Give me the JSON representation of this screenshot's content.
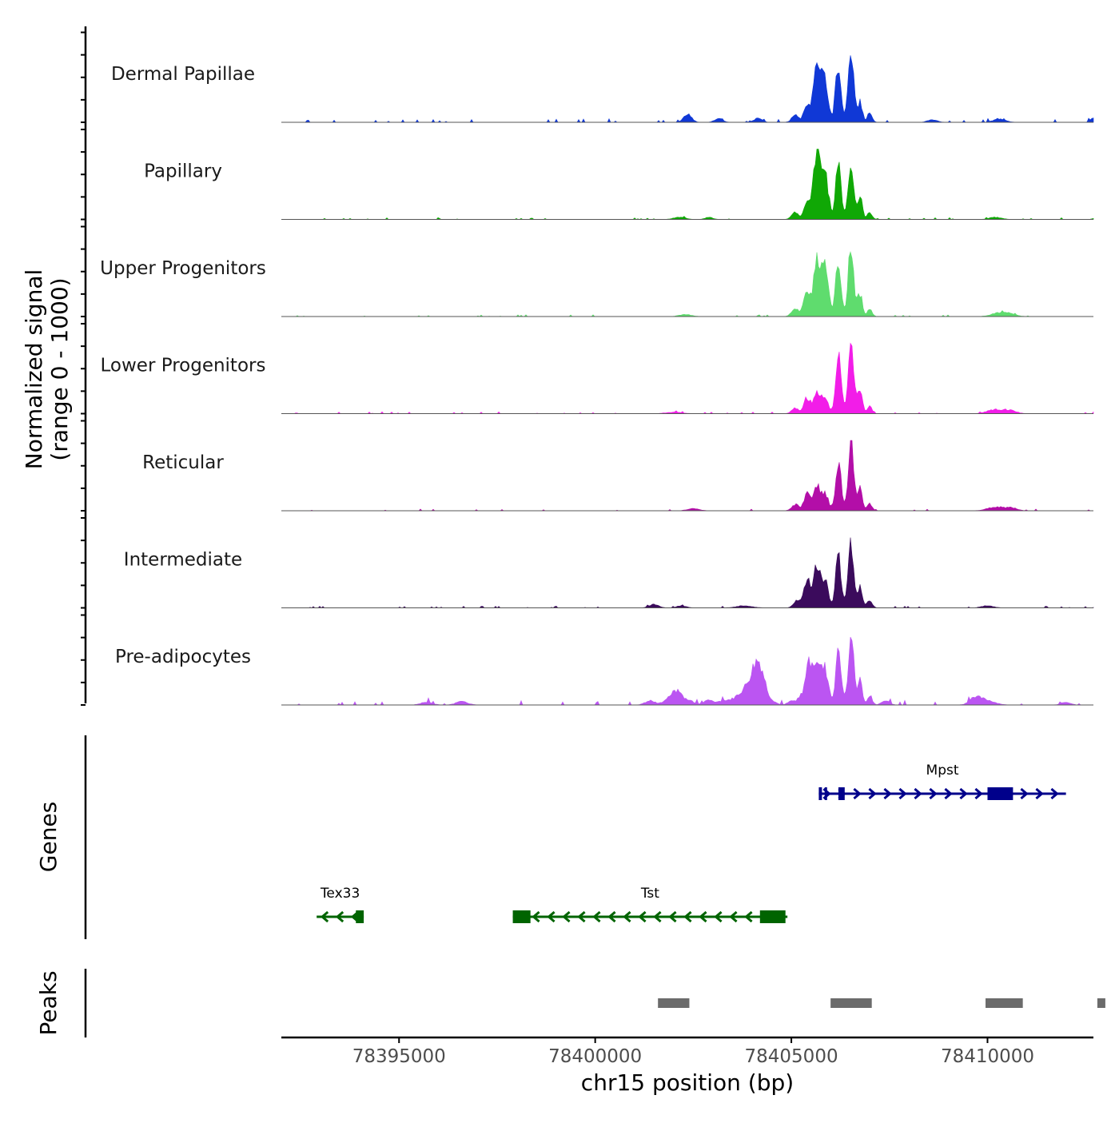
{
  "chart_data": {
    "type": "area",
    "title": "",
    "xlabel": "chr15 position (bp)",
    "xlim": [
      78392000,
      78412700
    ],
    "x_ticks": [
      78395000,
      78400000,
      78405000,
      78410000
    ],
    "x_tick_labels": [
      "78395000",
      "78400000",
      "78405000",
      "78410000"
    ],
    "coverage_ylabel": "Normalized signal\n(range 0 - 1000)",
    "ylim": [
      0,
      1000
    ],
    "tracks": [
      {
        "name": "Dermal Papillae",
        "color": "#1038d6",
        "peaks": [
          [
            78402360,
            12,
            100
          ],
          [
            78403150,
            6,
            100
          ],
          [
            78404150,
            6,
            100
          ],
          [
            78405100,
            10,
            90
          ],
          [
            78405400,
            20,
            80
          ],
          [
            78405650,
            95,
            85
          ],
          [
            78405860,
            56,
            85
          ],
          [
            78406200,
            85,
            70
          ],
          [
            78406520,
            100,
            70
          ],
          [
            78406750,
            28,
            60
          ],
          [
            78407000,
            14,
            60
          ],
          [
            78408600,
            4,
            120
          ],
          [
            78410300,
            5,
            150
          ],
          [
            78412700,
            6,
            70
          ]
        ],
        "noise": 4,
        "seed": 3
      },
      {
        "name": "Papillary",
        "color": "#10a805",
        "peaks": [
          [
            78402150,
            3,
            150
          ],
          [
            78402900,
            3,
            100
          ],
          [
            78405100,
            9,
            90
          ],
          [
            78405400,
            22,
            80
          ],
          [
            78405650,
            100,
            85
          ],
          [
            78405860,
            65,
            85
          ],
          [
            78406200,
            82,
            70
          ],
          [
            78406520,
            82,
            70
          ],
          [
            78406750,
            32,
            60
          ],
          [
            78407000,
            10,
            60
          ],
          [
            78410200,
            3,
            150
          ],
          [
            78412800,
            2,
            100
          ]
        ],
        "noise": 2,
        "seed": 7
      },
      {
        "name": "Upper Progenitors",
        "color": "#5fdc6e",
        "peaks": [
          [
            78402300,
            3,
            150
          ],
          [
            78405100,
            12,
            90
          ],
          [
            78405400,
            38,
            80
          ],
          [
            78405650,
            75,
            85
          ],
          [
            78405860,
            66,
            85
          ],
          [
            78406200,
            78,
            70
          ],
          [
            78406520,
            100,
            70
          ],
          [
            78406750,
            32,
            60
          ],
          [
            78407000,
            10,
            60
          ],
          [
            78410300,
            5,
            200
          ],
          [
            78410600,
            3,
            150
          ]
        ],
        "noise": 2,
        "seed": 11
      },
      {
        "name": "Lower Progenitors",
        "color": "#f21de8",
        "peaks": [
          [
            78402000,
            2,
            200
          ],
          [
            78405100,
            8,
            90
          ],
          [
            78405400,
            22,
            80
          ],
          [
            78405650,
            32,
            85
          ],
          [
            78405860,
            22,
            85
          ],
          [
            78406200,
            80,
            70
          ],
          [
            78406520,
            100,
            70
          ],
          [
            78406750,
            36,
            60
          ],
          [
            78407000,
            10,
            60
          ],
          [
            78410200,
            6,
            200
          ],
          [
            78410600,
            4,
            150
          ]
        ],
        "noise": 2,
        "seed": 19
      },
      {
        "name": "Reticular",
        "color": "#b30ea8",
        "peaks": [
          [
            78402500,
            3,
            150
          ],
          [
            78405100,
            9,
            90
          ],
          [
            78405400,
            22,
            80
          ],
          [
            78405650,
            36,
            85
          ],
          [
            78405860,
            24,
            85
          ],
          [
            78406200,
            72,
            70
          ],
          [
            78406520,
            100,
            70
          ],
          [
            78406750,
            33,
            60
          ],
          [
            78407000,
            10,
            60
          ],
          [
            78410200,
            5,
            200
          ],
          [
            78410600,
            4,
            150
          ]
        ],
        "noise": 2,
        "seed": 23
      },
      {
        "name": "Intermediate",
        "color": "#3b0b5c",
        "peaks": [
          [
            78401500,
            5,
            120
          ],
          [
            78402200,
            3,
            120
          ],
          [
            78403800,
            3,
            200
          ],
          [
            78405150,
            10,
            90
          ],
          [
            78405400,
            40,
            80
          ],
          [
            78405650,
            60,
            85
          ],
          [
            78405860,
            38,
            85
          ],
          [
            78406200,
            74,
            70
          ],
          [
            78406520,
            88,
            70
          ],
          [
            78406750,
            28,
            60
          ],
          [
            78407000,
            12,
            60
          ],
          [
            78410000,
            3,
            150
          ]
        ],
        "noise": 2,
        "seed": 29
      },
      {
        "name": "Pre-adipocytes",
        "color": "#bb55f2",
        "peaks": [
          [
            78395700,
            4,
            150
          ],
          [
            78396600,
            5,
            150
          ],
          [
            78401400,
            6,
            130
          ],
          [
            78401900,
            8,
            150
          ],
          [
            78402100,
            17,
            120
          ],
          [
            78402400,
            6,
            120
          ],
          [
            78402900,
            7,
            120
          ],
          [
            78403300,
            6,
            150
          ],
          [
            78403650,
            10,
            150
          ],
          [
            78403900,
            20,
            150
          ],
          [
            78404100,
            40,
            130
          ],
          [
            78404250,
            30,
            120
          ],
          [
            78404500,
            5,
            120
          ],
          [
            78405000,
            6,
            90
          ],
          [
            78405250,
            12,
            90
          ],
          [
            78405450,
            60,
            80
          ],
          [
            78405650,
            62,
            85
          ],
          [
            78405860,
            50,
            85
          ],
          [
            78406200,
            78,
            70
          ],
          [
            78406520,
            100,
            70
          ],
          [
            78406750,
            35,
            60
          ],
          [
            78407000,
            14,
            60
          ],
          [
            78407400,
            6,
            100
          ],
          [
            78409700,
            9,
            150
          ],
          [
            78410000,
            6,
            200
          ],
          [
            78412000,
            4,
            120
          ]
        ],
        "noise": 5,
        "seed": 31
      }
    ],
    "genes_axis_label": "Genes",
    "genes": [
      {
        "name": "Mpst",
        "strand": "+",
        "start": 78405700,
        "end": 78412000,
        "color": "#00008b",
        "exons": [
          [
            78405700,
            78405780
          ],
          [
            78405850,
            78405900
          ],
          [
            78406200,
            78406360
          ],
          [
            78410000,
            78410650
          ]
        ]
      },
      {
        "name": "Tex33",
        "strand": "-",
        "start": 78392900,
        "end": 78394100,
        "color": "#006400",
        "exons": [
          [
            78393900,
            78394100
          ]
        ]
      },
      {
        "name": "Tst",
        "strand": "-",
        "start": 78397900,
        "end": 78404900,
        "color": "#006400",
        "exons": [
          [
            78397900,
            78398350
          ],
          [
            78404200,
            78404850
          ]
        ]
      }
    ],
    "peaks_axis_label": "Peaks",
    "peak_regions": [
      [
        78401600,
        78402400
      ],
      [
        78406000,
        78407050
      ],
      [
        78409950,
        78410900
      ],
      [
        78412800,
        78413000
      ]
    ]
  }
}
